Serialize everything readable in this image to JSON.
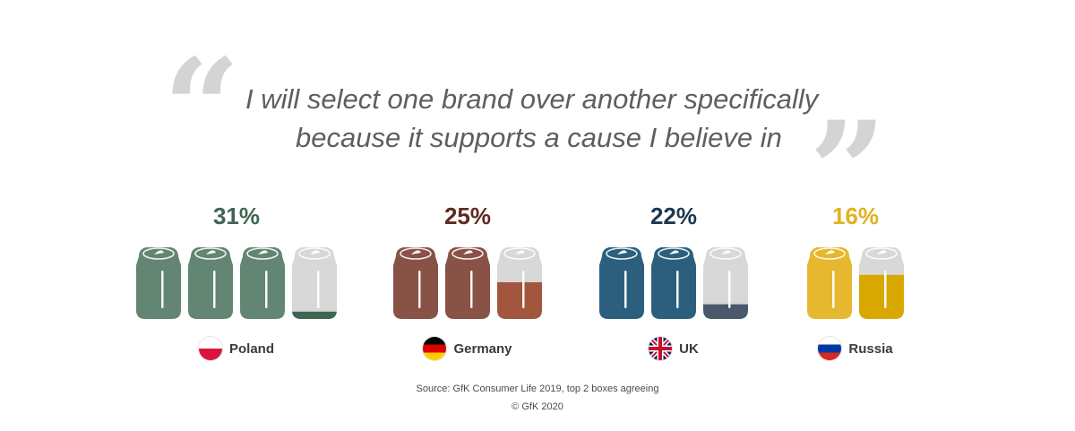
{
  "quote": {
    "line1": "I will select one brand over another specifically",
    "line2": "because it supports a cause I believe in"
  },
  "chart_data": {
    "type": "bar",
    "title": "I will select one brand over another specifically because it supports a cause I believe in",
    "categories": [
      "Poland",
      "Germany",
      "UK",
      "Russia"
    ],
    "values": [
      31,
      25,
      22,
      16
    ],
    "value_labels": [
      "31%",
      "25%",
      "22%",
      "16%"
    ],
    "unit": "%",
    "cans_per_unit": 10,
    "colors": {
      "Poland": {
        "full": "#638573",
        "partial": "#3f6553",
        "label": "#3f6553"
      },
      "Germany": {
        "full": "#895247",
        "partial": "#a2563d",
        "label": "#5e2a20"
      },
      "UK": {
        "full": "#2b5f7d",
        "partial": "#4a586c",
        "label": "#1c3850"
      },
      "Russia": {
        "full": "#e6b82f",
        "partial": "#d9a800",
        "label": "#e0b21e"
      },
      "empty_can": "#d8d8d8"
    },
    "flags": [
      "poland",
      "germany",
      "uk",
      "russia"
    ]
  },
  "source": {
    "text": "Source: GfK Consumer Life 2019, top 2 boxes agreeing",
    "copyright": "© GfK 2020"
  }
}
